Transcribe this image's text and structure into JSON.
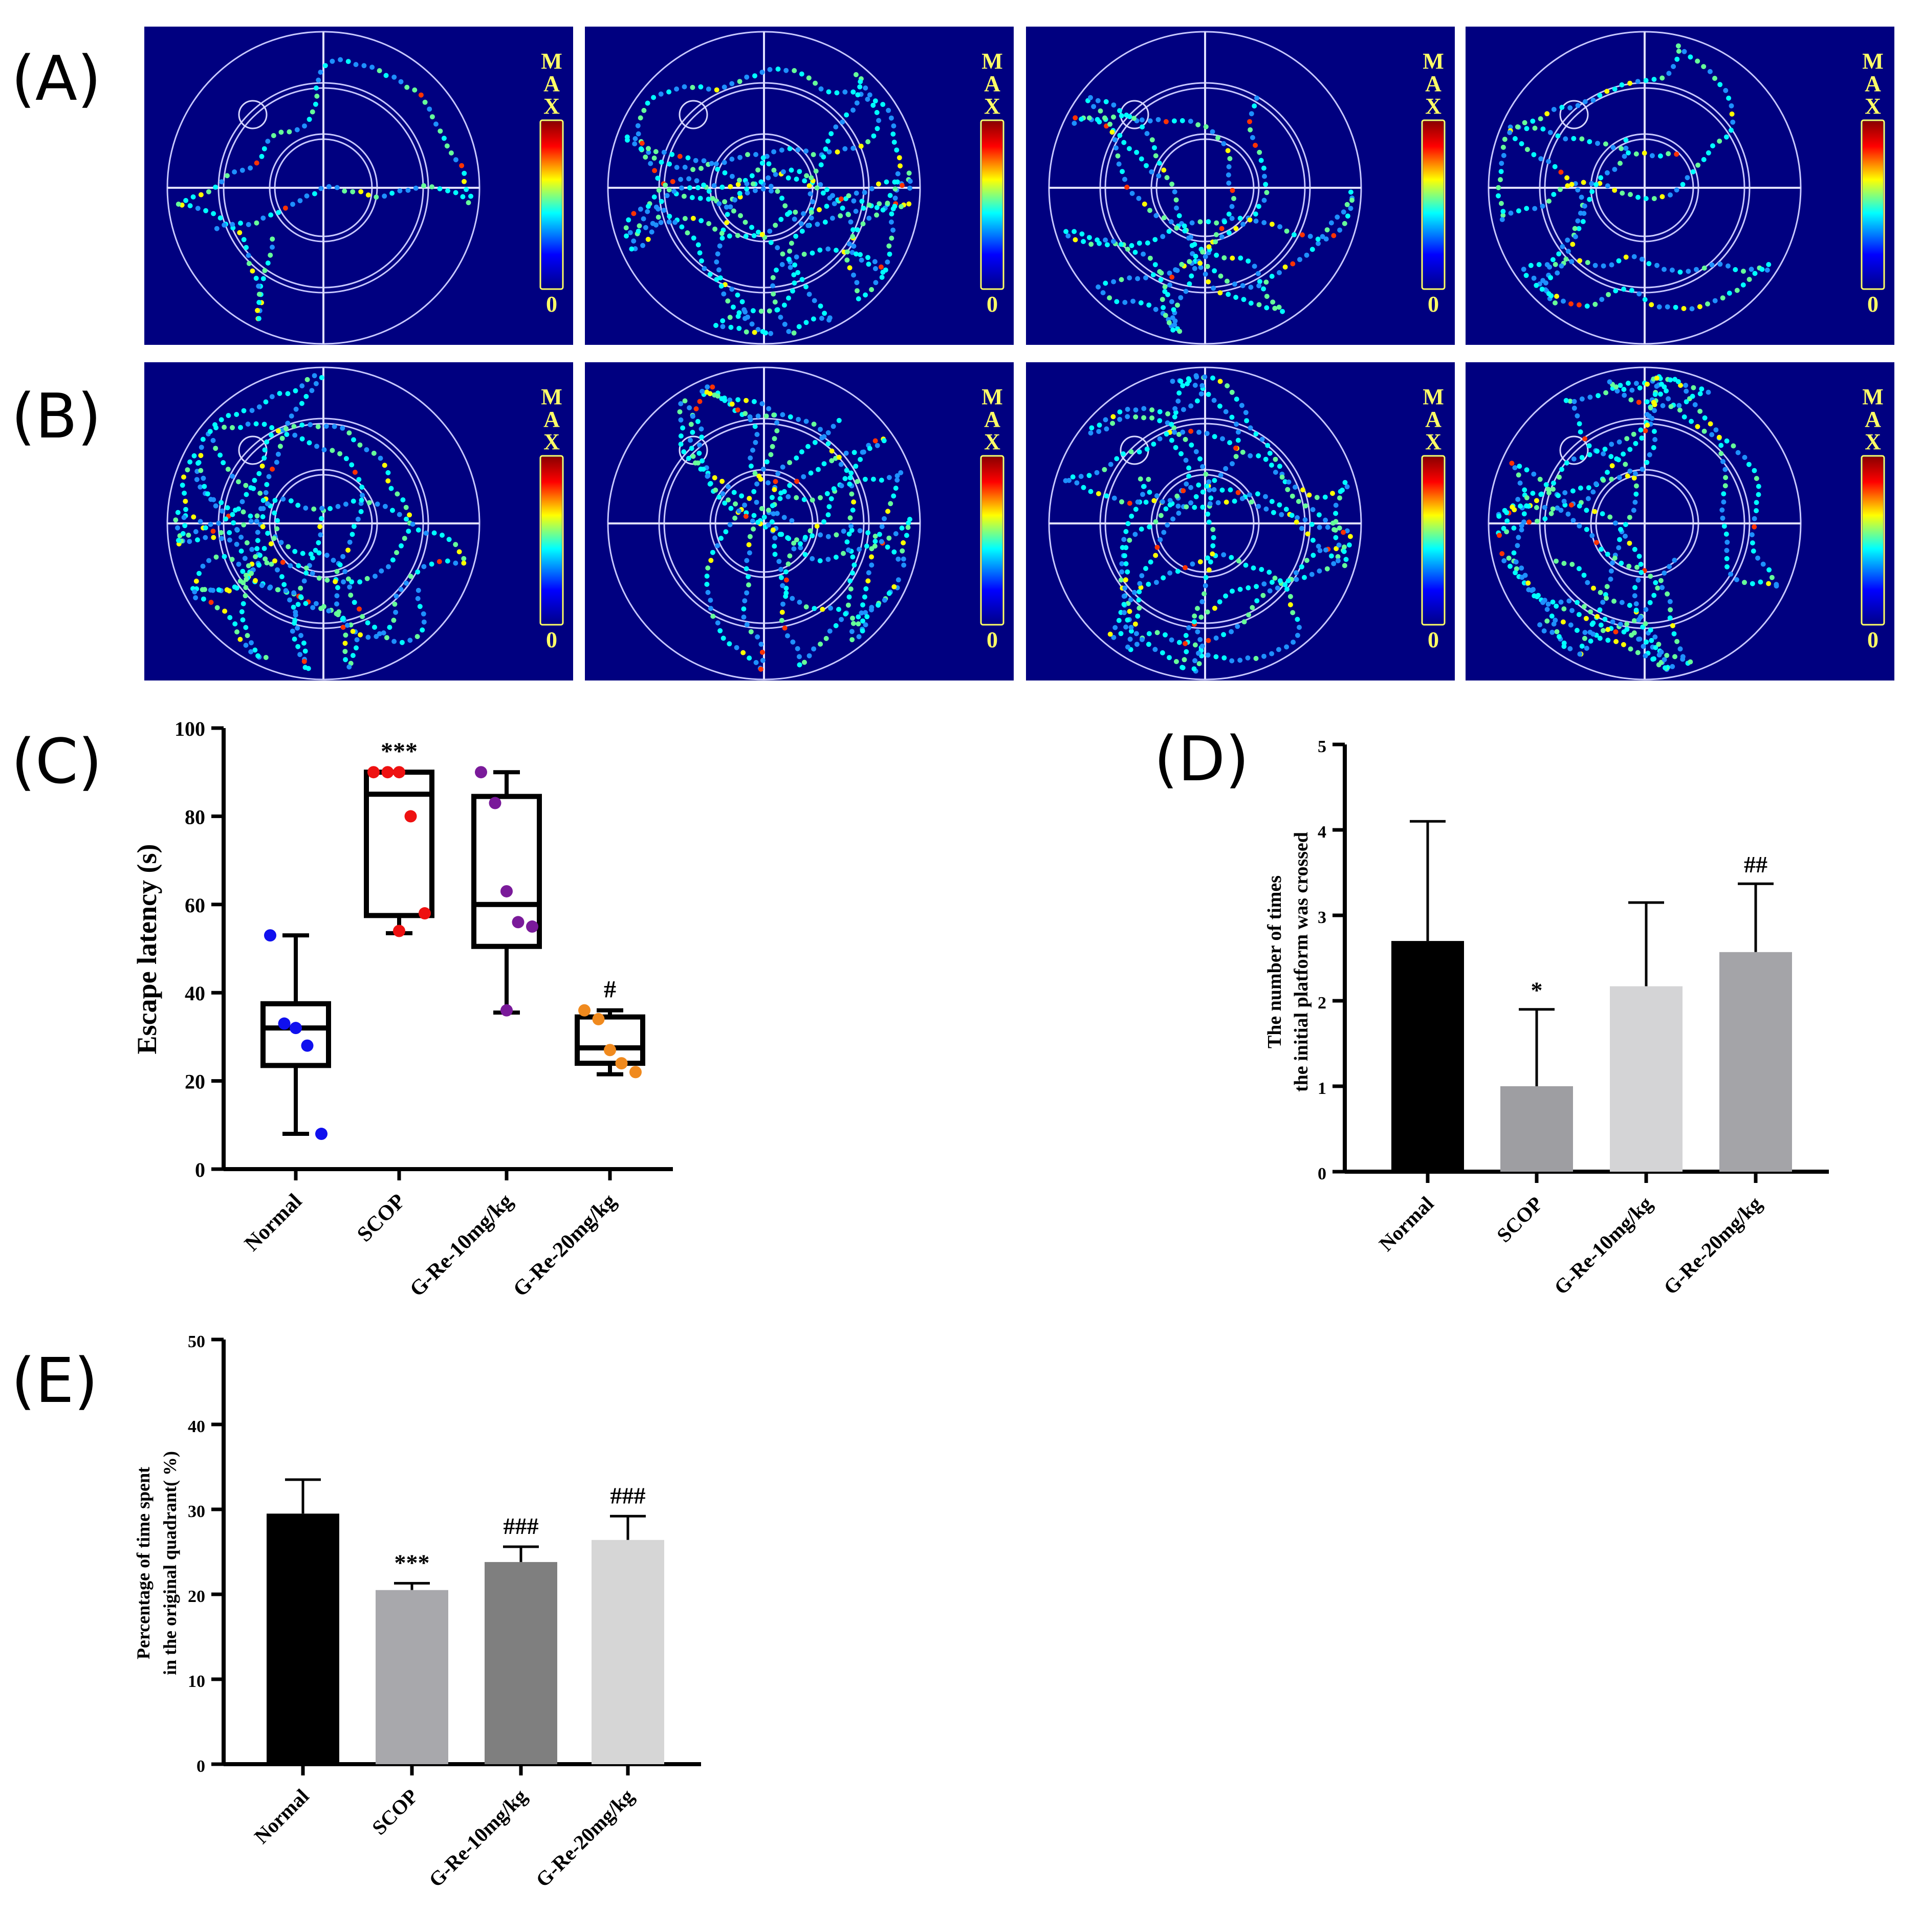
{
  "panel_labels": {
    "A": "(A)",
    "B": "(B)",
    "C": "(C)",
    "D": "(D)",
    "E": "(E)"
  },
  "colorbar": {
    "max_label": "MAX",
    "zero_label": "0"
  },
  "heatmaps": {
    "rows": [
      "A",
      "B"
    ],
    "columns": 4,
    "background": "#000080",
    "scale_colors": [
      "#00008b",
      "#0000ff",
      "#00ffff",
      "#ffff00",
      "#ff0000",
      "#8b0000"
    ]
  },
  "colors": {
    "normal": "#000000",
    "scop": "#9e9ea2",
    "g10": "#7b7b7b",
    "g20": "#d3d3d3"
  },
  "chart_data": [
    {
      "panel": "C",
      "type": "box",
      "ylabel": "Escape latency (s)",
      "ylim": [
        0,
        100
      ],
      "yticks": [
        "0",
        "20",
        "40",
        "60",
        "80",
        "100"
      ],
      "categories": [
        "Normal",
        "SCOP",
        "G-Re-10mg/kg",
        "G-Re-20mg/kg"
      ],
      "boxes": [
        {
          "min": 8,
          "q1": 23.5,
          "median": 32,
          "q3": 37.5,
          "max": 53,
          "points": [
            53,
            33,
            32,
            28,
            8
          ],
          "color": "#1010ee",
          "annotation": ""
        },
        {
          "min": 53.5,
          "q1": 57.5,
          "median": 85,
          "q3": 90,
          "max": 90,
          "points": [
            90,
            90,
            90,
            80,
            58,
            54
          ],
          "color": "#ee1111",
          "annotation": "***"
        },
        {
          "min": 35.5,
          "q1": 50.5,
          "median": 60,
          "q3": 84.5,
          "max": 90,
          "points": [
            90,
            83,
            63,
            56,
            55,
            36
          ],
          "color": "#7a1a9a",
          "annotation": ""
        },
        {
          "min": 21.5,
          "q1": 24,
          "median": 27.5,
          "q3": 34.5,
          "max": 36,
          "points": [
            36,
            34,
            27,
            24,
            22
          ],
          "color": "#f08a1e",
          "annotation": "#"
        }
      ]
    },
    {
      "panel": "D",
      "type": "bar",
      "ylabel_lines": [
        "The number of times",
        "the initial platform was crossed"
      ],
      "ylim": [
        0,
        5
      ],
      "yticks": [
        "0",
        "1",
        "2",
        "3",
        "4",
        "5"
      ],
      "categories": [
        "Normal",
        "SCOP",
        "G-Re-10mg/kg",
        "G-Re-20mg/kg"
      ],
      "values": [
        2.7,
        1.0,
        2.17,
        2.57
      ],
      "errors": [
        1.4,
        0.9,
        0.98,
        0.8
      ],
      "colors": [
        "#000000",
        "#9e9ea2",
        "#d4d4d6",
        "#a4a4a8"
      ],
      "annotations": [
        "",
        "*",
        "",
        "##"
      ]
    },
    {
      "panel": "E",
      "type": "bar",
      "ylabel_lines": [
        "Percentage of time spent",
        "in the original quadrant( %)"
      ],
      "ylim": [
        0,
        50
      ],
      "yticks": [
        "0",
        "10",
        "20",
        "30",
        "40",
        "50"
      ],
      "categories": [
        "Normal",
        "SCOP",
        "G-Re-10mg/kg",
        "G-Re-20mg/kg"
      ],
      "values": [
        29.5,
        20.5,
        23.8,
        26.4
      ],
      "errors": [
        4.0,
        0.8,
        1.8,
        2.8
      ],
      "colors": [
        "#000000",
        "#a8a8ac",
        "#7f7f7f",
        "#d6d6d6"
      ],
      "annotations": [
        "",
        "***",
        "###",
        "###"
      ]
    }
  ]
}
